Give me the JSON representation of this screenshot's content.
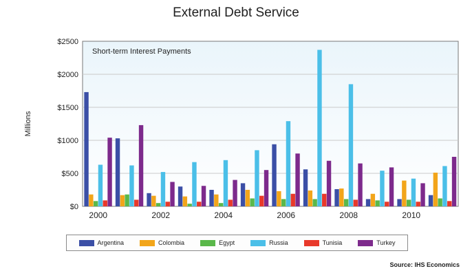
{
  "page": {
    "title": "External Debt Service",
    "source": "Source: IHS Economics"
  },
  "chart_data": {
    "type": "bar",
    "title": "External Debt Service",
    "subtitle": "Short-term Interest Payments",
    "xlabel": "",
    "ylabel": "Millions",
    "ylim": [
      0,
      2500
    ],
    "yticks": [
      0,
      500,
      1000,
      1500,
      2000,
      2500
    ],
    "ytick_labels": [
      "$0",
      "$500",
      "$1000",
      "$1500",
      "$2000",
      "$2500"
    ],
    "categories": [
      "2000",
      "2001",
      "2002",
      "2003",
      "2004",
      "2005",
      "2006",
      "2007",
      "2008",
      "2009",
      "2010",
      "2011"
    ],
    "xtick_labels": [
      "2000",
      "2002",
      "2004",
      "2006",
      "2008",
      "2010"
    ],
    "grid": true,
    "legend_position": "bottom",
    "series": [
      {
        "name": "Argentina",
        "color": "#3b4fa6",
        "values": [
          1730,
          1030,
          200,
          300,
          250,
          350,
          940,
          560,
          260,
          110,
          110,
          170
        ]
      },
      {
        "name": "Colombia",
        "color": "#f2a51a",
        "values": [
          180,
          170,
          160,
          150,
          180,
          250,
          230,
          240,
          270,
          190,
          390,
          510
        ]
      },
      {
        "name": "Egypt",
        "color": "#5ab84a",
        "values": [
          80,
          180,
          50,
          40,
          50,
          120,
          110,
          110,
          110,
          90,
          100,
          120
        ]
      },
      {
        "name": "Russia",
        "color": "#4bbfe8",
        "values": [
          630,
          620,
          520,
          670,
          700,
          850,
          1290,
          2370,
          1850,
          540,
          420,
          610
        ]
      },
      {
        "name": "Tunisia",
        "color": "#e8392a",
        "values": [
          90,
          100,
          70,
          70,
          100,
          160,
          190,
          190,
          100,
          70,
          70,
          80
        ]
      },
      {
        "name": "Turkey",
        "color": "#7d2a8c",
        "values": [
          1040,
          1230,
          370,
          310,
          400,
          550,
          800,
          690,
          650,
          590,
          350,
          750
        ]
      }
    ]
  }
}
